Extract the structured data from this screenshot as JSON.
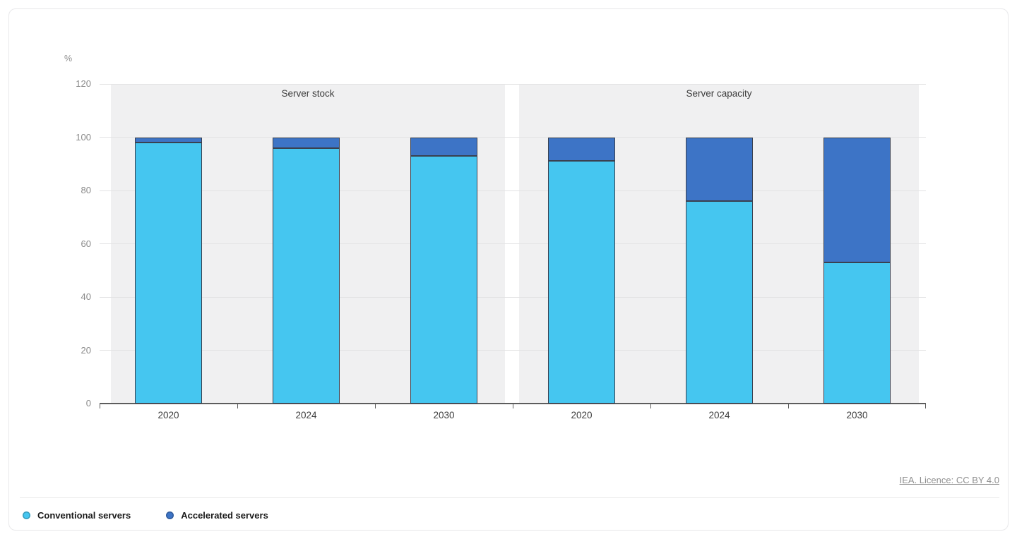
{
  "chart_data": {
    "type": "bar",
    "stacked": true,
    "unit": "%",
    "ylabel": "%",
    "ylim": [
      0,
      120
    ],
    "yticks": [
      0,
      20,
      40,
      60,
      80,
      100,
      120
    ],
    "grid": true,
    "legend_position": "bottom-left",
    "panels": [
      {
        "title": "Server stock",
        "categories": [
          "2020",
          "2024",
          "2030"
        ],
        "series": [
          {
            "name": "Conventional servers",
            "values": [
              98,
              96,
              93
            ]
          },
          {
            "name": "Accelerated servers",
            "values": [
              2,
              4,
              7
            ]
          }
        ]
      },
      {
        "title": "Server capacity",
        "categories": [
          "2020",
          "2024",
          "2030"
        ],
        "series": [
          {
            "name": "Conventional servers",
            "values": [
              91,
              76,
              53
            ]
          },
          {
            "name": "Accelerated servers",
            "values": [
              9,
              24,
              47
            ]
          }
        ]
      }
    ],
    "colors": {
      "conventional": "#45c6f0",
      "accelerated": "#3d74c6"
    }
  },
  "legend": {
    "items": [
      {
        "label": "Conventional servers",
        "color": "#45c6f0"
      },
      {
        "label": "Accelerated servers",
        "color": "#3d74c6"
      }
    ]
  },
  "footer": {
    "license": "IEA. Licence: CC BY 4.0"
  }
}
